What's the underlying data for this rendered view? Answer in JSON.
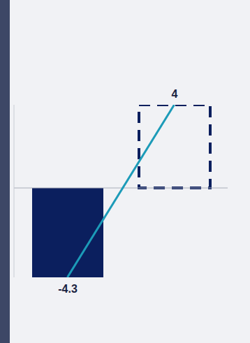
{
  "chart_data": {
    "type": "bar",
    "categories": [
      null,
      null
    ],
    "ylim": [
      -4.3,
      4.0
    ],
    "tick_labels": false,
    "series": [
      {
        "type": "bar",
        "colors": [
          "#0b1f5e",
          "#0b1f5e"
        ],
        "values": [
          -4.3,
          4.0
        ],
        "data_labels": true
      },
      {
        "type": "line",
        "color": "#1c9bb8",
        "values": [
          -4.3,
          4.0
        ]
      }
    ]
  }
}
